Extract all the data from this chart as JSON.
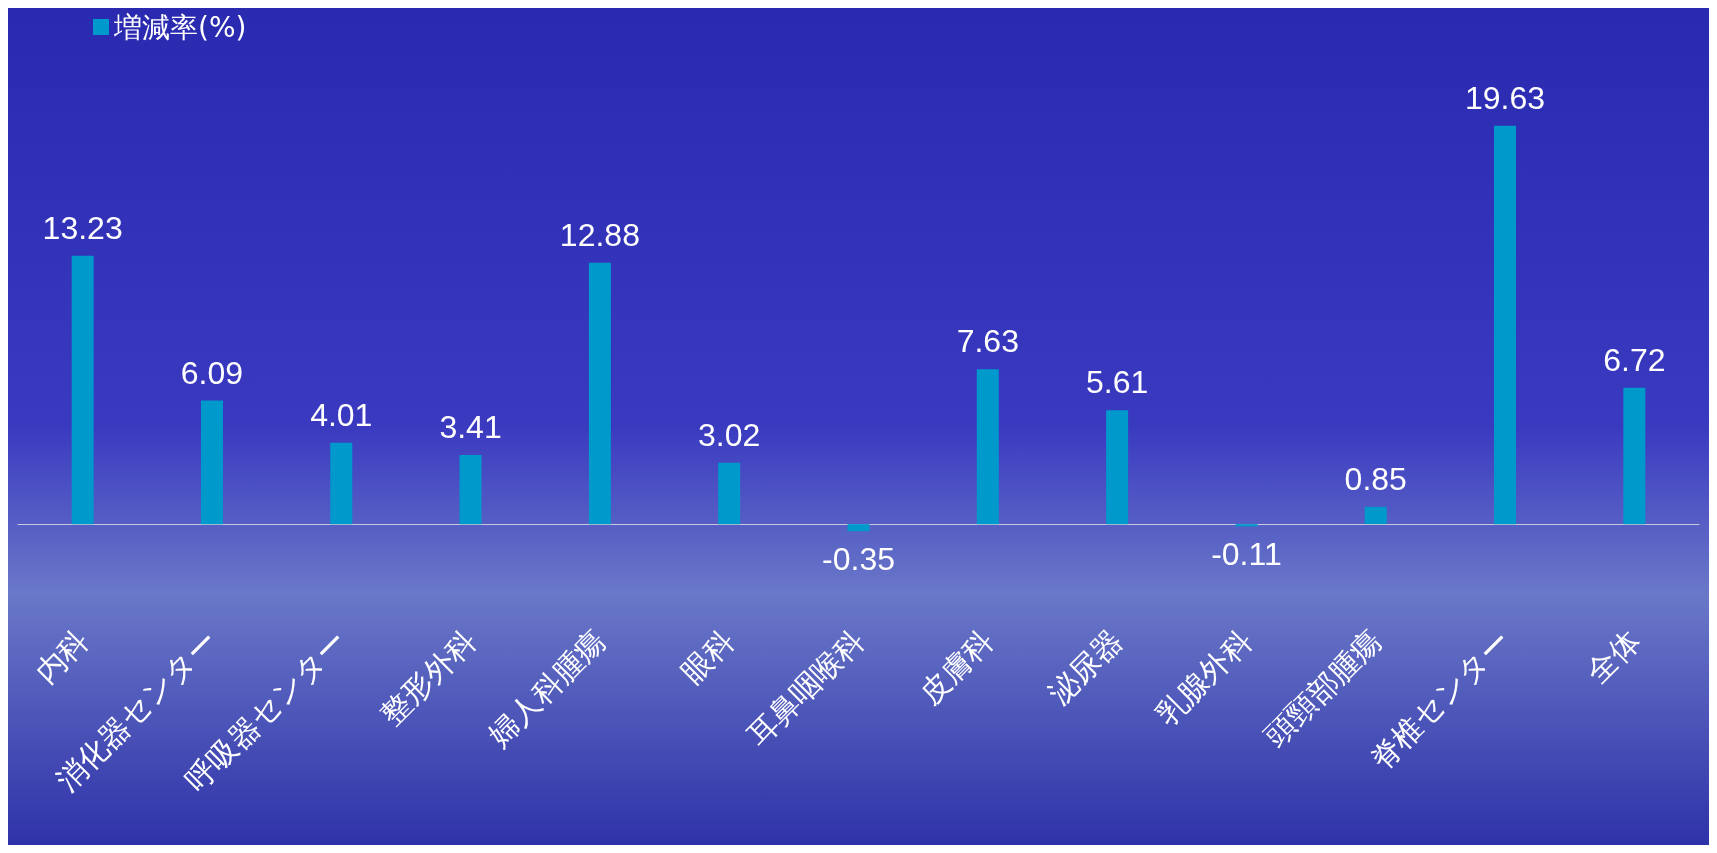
{
  "chart_data": {
    "type": "bar",
    "categories": [
      "内科",
      "消化器センター",
      "呼吸器センター",
      "整形外科",
      "婦人科腫瘍",
      "眼科",
      "耳鼻咽喉科",
      "皮膚科",
      "泌尿器",
      "乳腺外科",
      "頭頸部腫瘍",
      "脊椎センター",
      "全体"
    ],
    "series": [
      {
        "name": "増減率(%)",
        "color": "#0099cc",
        "values": [
          13.23,
          6.09,
          4.01,
          3.41,
          12.88,
          3.02,
          -0.35,
          7.63,
          5.61,
          -0.11,
          0.85,
          19.63,
          6.72
        ]
      }
    ],
    "tick_labels": "x",
    "data_labels": true,
    "legend": "top left"
  }
}
